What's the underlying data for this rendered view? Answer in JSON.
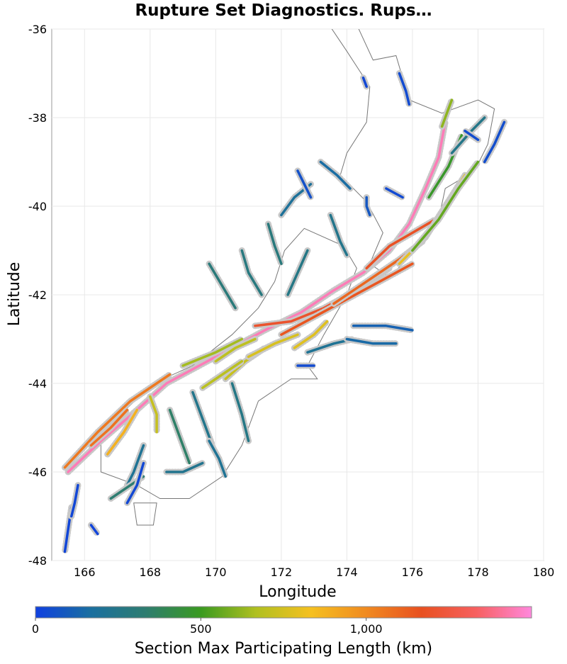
{
  "title": "Rupture Set Diagnostics. Rups…",
  "chart_data": {
    "type": "map",
    "xlabel": "Longitude",
    "ylabel": "Latitude",
    "xlim": [
      165,
      180
    ],
    "ylim": [
      -48,
      -36
    ],
    "x_ticks": [
      "166",
      "168",
      "170",
      "172",
      "174",
      "176",
      "178",
      "180"
    ],
    "y_ticks": [
      "-36",
      "-38",
      "-40",
      "-42",
      "-44",
      "-46",
      "-48"
    ],
    "grid": true,
    "colorbar": {
      "title": "Section Max Participating Length (km)",
      "range": [
        0,
        1500
      ],
      "tick_labels": [
        "0",
        "500",
        "1,000"
      ],
      "tick_values": [
        0,
        500,
        1000
      ],
      "colors": [
        "#1040e0",
        "#1a6fa0",
        "#2e7d70",
        "#3a9a20",
        "#b0c020",
        "#f5c020",
        "#f08a20",
        "#e85020",
        "#f76060",
        "#ff88dd"
      ]
    },
    "faults": [
      {
        "points": [
          [
            165.5,
            -46.0
          ],
          [
            166.5,
            -45.3
          ],
          [
            167.6,
            -44.6
          ],
          [
            168.5,
            -44.0
          ],
          [
            169.5,
            -43.6
          ],
          [
            170.5,
            -43.2
          ],
          [
            171.5,
            -42.8
          ],
          [
            172.6,
            -42.4
          ],
          [
            173.6,
            -41.9
          ],
          [
            174.5,
            -41.5
          ],
          [
            175.3,
            -41.0
          ],
          [
            175.9,
            -40.4
          ],
          [
            176.4,
            -39.6
          ],
          [
            176.8,
            -38.9
          ],
          [
            177.0,
            -38.1
          ]
        ],
        "value": 1450
      },
      {
        "points": [
          [
            165.4,
            -45.9
          ],
          [
            166.4,
            -45.1
          ],
          [
            167.4,
            -44.4
          ],
          [
            168.6,
            -43.8
          ]
        ],
        "value": 1050
      },
      {
        "points": [
          [
            169.0,
            -43.6
          ],
          [
            170.0,
            -43.3
          ],
          [
            170.8,
            -43.0
          ]
        ],
        "value": 650
      },
      {
        "points": [
          [
            171.2,
            -42.7
          ],
          [
            172.3,
            -42.6
          ],
          [
            173.3,
            -42.3
          ],
          [
            174.3,
            -41.9
          ],
          [
            175.3,
            -41.4
          ]
        ],
        "value": 1200
      },
      {
        "points": [
          [
            172.0,
            -42.9
          ],
          [
            173.0,
            -42.5
          ],
          [
            174.0,
            -42.1
          ],
          [
            175.0,
            -41.7
          ],
          [
            176.0,
            -41.3
          ]
        ],
        "value": 1150
      },
      {
        "points": [
          [
            173.6,
            -42.2
          ],
          [
            174.6,
            -41.7
          ],
          [
            175.6,
            -41.2
          ],
          [
            176.3,
            -40.8
          ]
        ],
        "value": 1100
      },
      {
        "points": [
          [
            174.6,
            -41.4
          ],
          [
            175.3,
            -40.9
          ],
          [
            176.0,
            -40.6
          ],
          [
            176.7,
            -40.3
          ]
        ],
        "value": 1180
      },
      {
        "points": [
          [
            175.6,
            -41.3
          ],
          [
            176.4,
            -40.7
          ],
          [
            177.0,
            -40.0
          ],
          [
            177.6,
            -39.3
          ]
        ],
        "value": 800
      },
      {
        "points": [
          [
            176.0,
            -41.0
          ],
          [
            176.8,
            -40.3
          ],
          [
            177.4,
            -39.6
          ],
          [
            178.0,
            -39.0
          ]
        ],
        "value": 560
      },
      {
        "points": [
          [
            176.5,
            -39.8
          ],
          [
            177.1,
            -39.1
          ],
          [
            177.5,
            -38.4
          ]
        ],
        "value": 480
      },
      {
        "points": [
          [
            177.2,
            -38.8
          ],
          [
            177.8,
            -38.3
          ],
          [
            178.2,
            -38.0
          ]
        ],
        "value": 250
      },
      {
        "points": [
          [
            176.9,
            -38.2
          ],
          [
            177.1,
            -37.8
          ],
          [
            177.2,
            -37.6
          ]
        ],
        "value": 620
      },
      {
        "points": [
          [
            170.0,
            -43.5
          ],
          [
            170.6,
            -43.2
          ],
          [
            171.2,
            -43.0
          ]
        ],
        "value": 700
      },
      {
        "points": [
          [
            170.3,
            -43.9
          ],
          [
            170.9,
            -43.5
          ],
          [
            171.5,
            -43.2
          ]
        ],
        "value": 720
      },
      {
        "points": [
          [
            169.6,
            -44.1
          ],
          [
            170.2,
            -43.8
          ],
          [
            170.8,
            -43.5
          ]
        ],
        "value": 690
      },
      {
        "points": [
          [
            171.0,
            -43.4
          ],
          [
            171.8,
            -43.1
          ],
          [
            172.5,
            -42.9
          ]
        ],
        "value": 760
      },
      {
        "points": [
          [
            172.4,
            -43.2
          ],
          [
            173.0,
            -42.9
          ],
          [
            173.4,
            -42.6
          ]
        ],
        "value": 780
      },
      {
        "points": [
          [
            166.7,
            -45.6
          ],
          [
            167.2,
            -45.1
          ],
          [
            167.6,
            -44.6
          ]
        ],
        "value": 880
      },
      {
        "points": [
          [
            166.2,
            -45.4
          ],
          [
            166.8,
            -45.0
          ],
          [
            167.3,
            -44.6
          ]
        ],
        "value": 1070
      },
      {
        "points": [
          [
            168.0,
            -44.3
          ],
          [
            168.2,
            -44.7
          ],
          [
            168.2,
            -45.1
          ]
        ],
        "value": 720
      },
      {
        "points": [
          [
            169.8,
            -41.3
          ],
          [
            170.2,
            -41.8
          ],
          [
            170.6,
            -42.3
          ]
        ],
        "value": 300
      },
      {
        "points": [
          [
            170.8,
            -41.0
          ],
          [
            171.0,
            -41.5
          ],
          [
            171.4,
            -42.0
          ]
        ],
        "value": 280
      },
      {
        "points": [
          [
            171.6,
            -40.4
          ],
          [
            171.8,
            -40.9
          ],
          [
            172.0,
            -41.3
          ]
        ],
        "value": 290
      },
      {
        "points": [
          [
            172.8,
            -41.0
          ],
          [
            172.5,
            -41.5
          ],
          [
            172.2,
            -42.0
          ]
        ],
        "value": 260
      },
      {
        "points": [
          [
            173.5,
            -40.2
          ],
          [
            173.8,
            -40.8
          ],
          [
            174.0,
            -41.1
          ]
        ],
        "value": 240
      },
      {
        "points": [
          [
            170.5,
            -44.0
          ],
          [
            170.8,
            -44.7
          ],
          [
            171.0,
            -45.3
          ]
        ],
        "value": 260
      },
      {
        "points": [
          [
            169.3,
            -44.2
          ],
          [
            169.6,
            -44.8
          ],
          [
            169.9,
            -45.4
          ]
        ],
        "value": 240
      },
      {
        "points": [
          [
            169.8,
            -45.3
          ],
          [
            170.1,
            -45.7
          ],
          [
            170.3,
            -46.1
          ]
        ],
        "value": 210
      },
      {
        "points": [
          [
            168.6,
            -44.6
          ],
          [
            168.9,
            -45.2
          ],
          [
            169.2,
            -45.8
          ]
        ],
        "value": 350
      },
      {
        "points": [
          [
            167.8,
            -45.4
          ],
          [
            167.5,
            -46.0
          ],
          [
            167.3,
            -46.3
          ]
        ],
        "value": 210
      },
      {
        "points": [
          [
            168.5,
            -46.0
          ],
          [
            169.0,
            -46.0
          ],
          [
            169.6,
            -45.8
          ]
        ],
        "value": 230
      },
      {
        "points": [
          [
            166.8,
            -46.6
          ],
          [
            167.4,
            -46.3
          ],
          [
            167.8,
            -46.1
          ]
        ],
        "value": 330
      },
      {
        "points": [
          [
            172.8,
            -43.3
          ],
          [
            173.6,
            -43.1
          ],
          [
            174.2,
            -43.0
          ]
        ],
        "value": 210
      },
      {
        "points": [
          [
            174.2,
            -42.7
          ],
          [
            175.2,
            -42.7
          ],
          [
            176.0,
            -42.8
          ]
        ],
        "value": 120
      },
      {
        "points": [
          [
            174.0,
            -43.0
          ],
          [
            174.8,
            -43.1
          ],
          [
            175.5,
            -43.1
          ]
        ],
        "value": 150
      },
      {
        "points": [
          [
            173.2,
            -39.0
          ],
          [
            173.7,
            -39.3
          ],
          [
            174.1,
            -39.6
          ]
        ],
        "value": 160
      },
      {
        "points": [
          [
            172.0,
            -40.2
          ],
          [
            172.4,
            -39.8
          ],
          [
            172.9,
            -39.5
          ]
        ],
        "value": 190
      },
      {
        "points": [
          [
            174.6,
            -39.8
          ],
          [
            174.6,
            -40.0
          ],
          [
            174.7,
            -40.2
          ]
        ],
        "value": 80
      },
      {
        "points": [
          [
            175.6,
            -37.0
          ],
          [
            175.8,
            -37.4
          ],
          [
            175.9,
            -37.7
          ]
        ],
        "value": 40
      },
      {
        "points": [
          [
            174.5,
            -37.1
          ],
          [
            174.6,
            -37.3
          ]
        ],
        "value": 30
      },
      {
        "points": [
          [
            165.6,
            -46.8
          ],
          [
            165.5,
            -47.3
          ],
          [
            165.4,
            -47.8
          ]
        ],
        "value": 20
      },
      {
        "points": [
          [
            165.8,
            -46.3
          ],
          [
            165.7,
            -46.7
          ],
          [
            165.6,
            -47.0
          ]
        ],
        "value": 25
      },
      {
        "points": [
          [
            166.2,
            -47.2
          ],
          [
            166.4,
            -47.4
          ]
        ],
        "value": 15
      },
      {
        "points": [
          [
            167.8,
            -45.8
          ],
          [
            167.6,
            -46.3
          ],
          [
            167.3,
            -46.7
          ]
        ],
        "value": 30
      },
      {
        "points": [
          [
            172.5,
            -43.6
          ],
          [
            173.0,
            -43.6
          ]
        ],
        "value": 40
      },
      {
        "points": [
          [
            172.5,
            -39.2
          ],
          [
            172.7,
            -39.5
          ],
          [
            172.9,
            -39.8
          ]
        ],
        "value": 60
      },
      {
        "points": [
          [
            178.8,
            -38.1
          ],
          [
            178.5,
            -38.6
          ],
          [
            178.2,
            -39.0
          ]
        ],
        "value": 50
      },
      {
        "points": [
          [
            178.0,
            -38.5
          ],
          [
            177.6,
            -38.3
          ]
        ],
        "value": 45
      },
      {
        "points": [
          [
            175.2,
            -39.6
          ],
          [
            175.7,
            -39.8
          ]
        ],
        "value": 35
      }
    ]
  }
}
